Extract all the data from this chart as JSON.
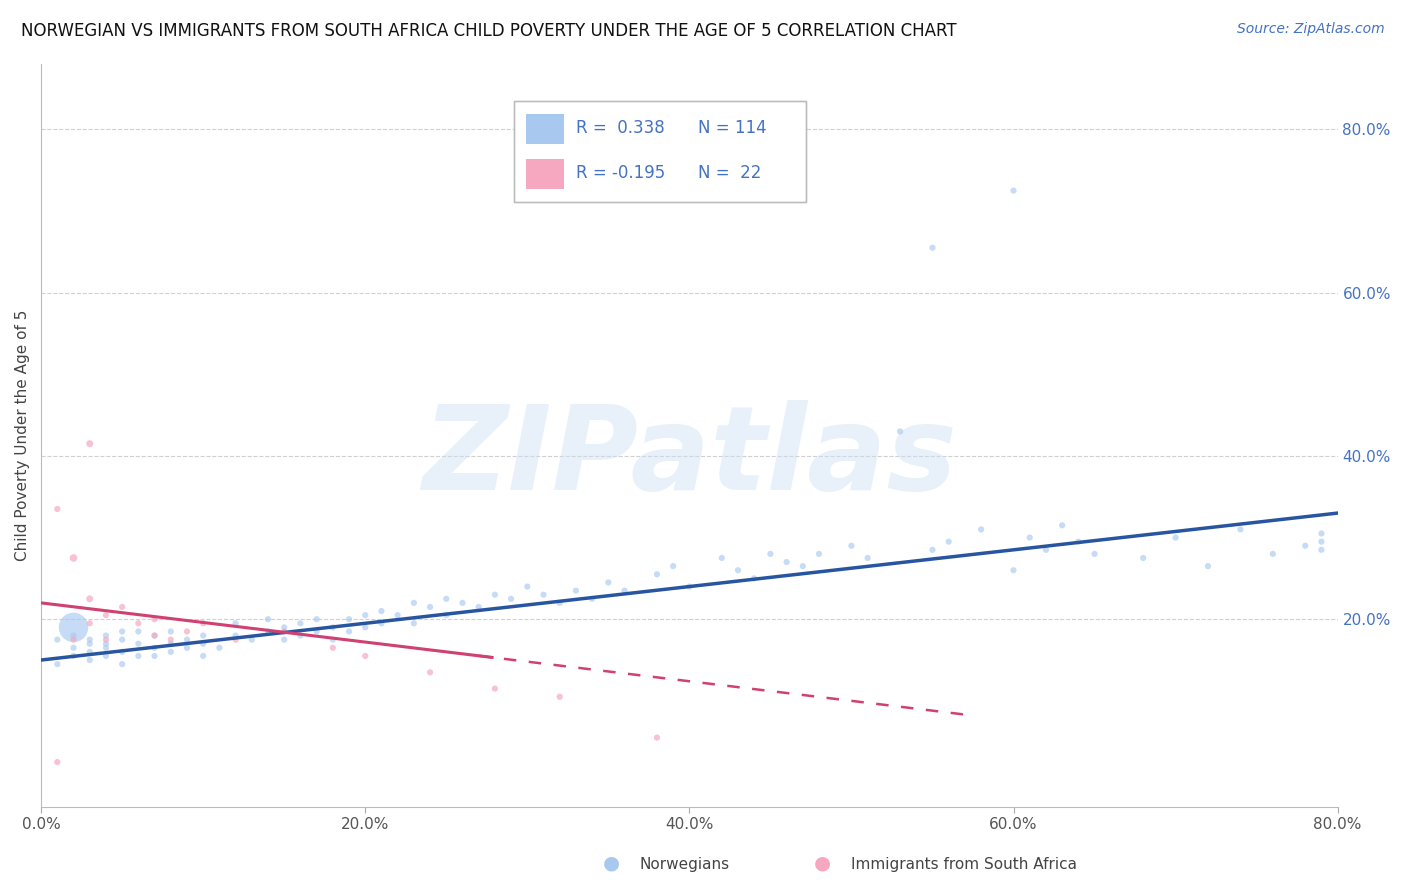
{
  "title": "NORWEGIAN VS IMMIGRANTS FROM SOUTH AFRICA CHILD POVERTY UNDER THE AGE OF 5 CORRELATION CHART",
  "source": "Source: ZipAtlas.com",
  "ylabel": "Child Poverty Under the Age of 5",
  "xlim": [
    0.0,
    0.8
  ],
  "ylim": [
    -0.03,
    0.88
  ],
  "right_yticks": [
    0.2,
    0.4,
    0.6,
    0.8
  ],
  "right_yticklabels": [
    "20.0%",
    "40.0%",
    "60.0%",
    "80.0%"
  ],
  "xticks": [
    0.0,
    0.2,
    0.4,
    0.6,
    0.8
  ],
  "xticklabels": [
    "0.0%",
    "20.0%",
    "40.0%",
    "60.0%",
    "80.0%"
  ],
  "blue_R": "0.338",
  "blue_N": "114",
  "pink_R": "-0.195",
  "pink_N": "22",
  "blue_color": "#a8c8f0",
  "pink_color": "#f5a8c0",
  "blue_line_color": "#2855a0",
  "pink_line_color": "#d04070",
  "watermark": "ZIPatlas",
  "legend_label_blue": "Norwegians",
  "legend_label_pink": "Immigrants from South Africa",
  "legend_text_color": "#4472c4",
  "title_fontsize": 12,
  "source_fontsize": 10,
  "tick_fontsize": 11,
  "ylabel_fontsize": 11
}
